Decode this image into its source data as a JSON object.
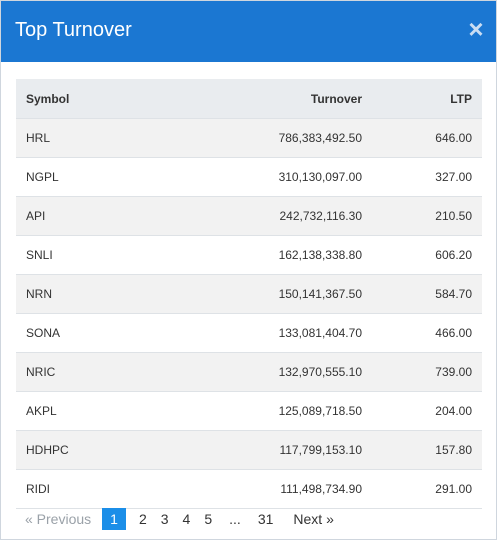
{
  "modal": {
    "title": "Top Turnover",
    "close_glyph": "×"
  },
  "table": {
    "headers": {
      "symbol": "Symbol",
      "turnover": "Turnover",
      "ltp": "LTP"
    },
    "rows": [
      {
        "symbol": "HRL",
        "turnover": "786,383,492.50",
        "ltp": "646.00"
      },
      {
        "symbol": "NGPL",
        "turnover": "310,130,097.00",
        "ltp": "327.00"
      },
      {
        "symbol": "API",
        "turnover": "242,732,116.30",
        "ltp": "210.50"
      },
      {
        "symbol": "SNLI",
        "turnover": "162,138,338.80",
        "ltp": "606.20"
      },
      {
        "symbol": "NRN",
        "turnover": "150,141,367.50",
        "ltp": "584.70"
      },
      {
        "symbol": "SONA",
        "turnover": "133,081,404.70",
        "ltp": "466.00"
      },
      {
        "symbol": "NRIC",
        "turnover": "132,970,555.10",
        "ltp": "739.00"
      },
      {
        "symbol": "AKPL",
        "turnover": "125,089,718.50",
        "ltp": "204.00"
      },
      {
        "symbol": "HDHPC",
        "turnover": "117,799,153.10",
        "ltp": "157.80"
      },
      {
        "symbol": "RIDI",
        "turnover": "111,498,734.90",
        "ltp": "291.00"
      }
    ]
  },
  "pagination": {
    "previous": "«  Previous",
    "pages": [
      "1",
      "2",
      "3",
      "4",
      "5"
    ],
    "ellipsis": "...",
    "last": "31",
    "next": "Next  »",
    "current": "1"
  },
  "colors": {
    "header_bg": "#1b77d2",
    "active_page_bg": "#1b8ee8"
  },
  "icons": {
    "close": "close-icon"
  }
}
